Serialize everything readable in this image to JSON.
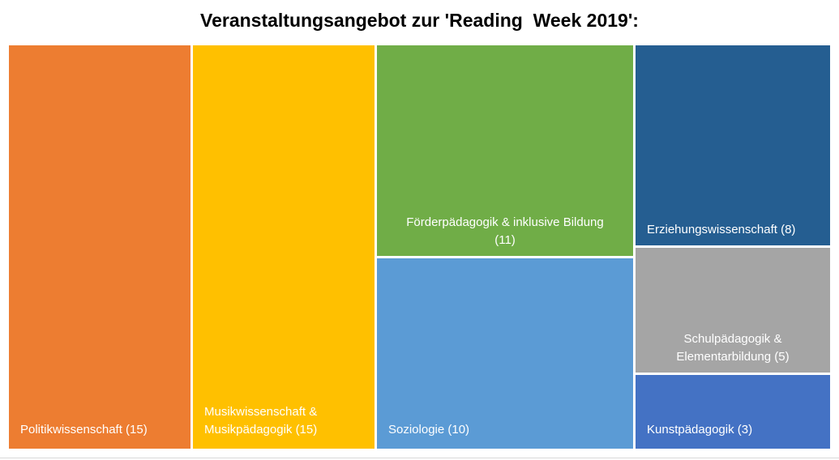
{
  "chart_data": {
    "type": "treemap",
    "title": "Veranstaltungsangebot zur 'Reading  Week 2019':",
    "items": [
      {
        "key": "politik",
        "label_lines": [
          "Politikwissenschaft (15)"
        ],
        "value": 15,
        "color": "#ED7D31"
      },
      {
        "key": "musik",
        "label_lines": [
          "Musikwissenschaft &",
          "Musikpädagogik (15)"
        ],
        "value": 15,
        "color": "#FFC000"
      },
      {
        "key": "foerder",
        "label_lines": [
          "Förderpädagogik & inklusive Bildung",
          "(11)"
        ],
        "value": 11,
        "color": "#70AD47"
      },
      {
        "key": "soziologie",
        "label_lines": [
          "Soziologie (10)"
        ],
        "value": 10,
        "color": "#5B9BD5"
      },
      {
        "key": "erziehung",
        "label_lines": [
          "Erziehungswissenschaft (8)"
        ],
        "value": 8,
        "color": "#255E91"
      },
      {
        "key": "schul",
        "label_lines": [
          "Schulpädagogik &",
          "Elementarbildung (5)"
        ],
        "value": 5,
        "color": "#A5A5A5"
      },
      {
        "key": "kunst",
        "label_lines": [
          "Kunstpädagogik (3)"
        ],
        "value": 3,
        "color": "#4472C4"
      }
    ]
  }
}
